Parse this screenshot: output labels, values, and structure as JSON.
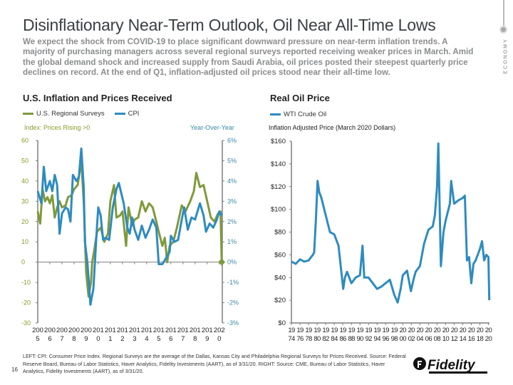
{
  "header": {
    "title": "Disinflationary Near-Term Outlook, Oil Near All-Time Lows",
    "paragraph": "We expect the shock from COVID-19 to place significant downward pressure on near-term inflation trends. A majority of purchasing managers across several regional surveys reported receiving weaker prices in March. Amid the global demand shock and increased supply from Saudi Arabia, oil prices posted their steepest quarterly price declines on record. At the end of Q1, inflation-adjusted oil prices stood near their all-time low.",
    "section": "ECONOMY"
  },
  "colors": {
    "green": "#7f9a3a",
    "blue": "#2e8bc0",
    "axis": "#7f7f7f"
  },
  "chart_data": [
    {
      "type": "line",
      "title": "U.S. Inflation and Prices Received",
      "ylabel": "Index: Prices Rising >0",
      "y2label": "Year-Over-Year",
      "ylim": [
        -30,
        60
      ],
      "yticks": [
        "60",
        "50",
        "40",
        "30",
        "20",
        "10",
        "0",
        "-10",
        "-20",
        "-30"
      ],
      "y2lim": [
        -3,
        6
      ],
      "y2ticks": [
        "6%",
        "5%",
        "4%",
        "3%",
        "2%",
        "1%",
        "0%",
        "-1%",
        "-2%",
        "-3%"
      ],
      "xlim": [
        2005,
        2020.25
      ],
      "xticks": [
        "2005",
        "2006",
        "2007",
        "2008",
        "2009",
        "2010",
        "2011",
        "2012",
        "2013",
        "2014",
        "2015",
        "2016",
        "2017",
        "2018",
        "2019",
        "2020"
      ],
      "series": [
        {
          "name": "U.S. Regional Surveys",
          "axis": "left",
          "color": "#7f9a3a",
          "x": [
            2005,
            2005.2,
            2005.4,
            2005.6,
            2005.8,
            2006,
            2006.2,
            2006.4,
            2006.6,
            2006.8,
            2007,
            2007.3,
            2007.5,
            2007.8,
            2008,
            2008.3,
            2008.6,
            2008.8,
            2009,
            2009.2,
            2009.4,
            2009.5,
            2009.7,
            2009.9,
            2010.2,
            2010.5,
            2010.8,
            2011,
            2011.3,
            2011.5,
            2011.8,
            2012,
            2012.3,
            2012.5,
            2012.8,
            2013,
            2013.3,
            2013.6,
            2013.9,
            2014.2,
            2014.5,
            2014.8,
            2015,
            2015.3,
            2015.5,
            2015.7,
            2015.9,
            2016.2,
            2016.5,
            2016.9,
            2017.2,
            2017.6,
            2017.9,
            2018.1,
            2018.4,
            2018.7,
            2019,
            2019.3,
            2019.6,
            2019.9,
            2020.1,
            2020.2
          ],
          "y": [
            25,
            19,
            36,
            30,
            32,
            29,
            33,
            22,
            27,
            30,
            27,
            28,
            32,
            33,
            36,
            38,
            50,
            30,
            -5,
            -17,
            -10,
            0,
            7,
            15,
            17,
            10,
            14,
            30,
            38,
            22,
            23,
            25,
            8,
            27,
            18,
            21,
            22,
            30,
            25,
            29,
            27,
            20,
            15,
            8,
            12,
            0,
            8,
            10,
            17,
            28,
            25,
            30,
            35,
            44,
            37,
            38,
            30,
            22,
            20,
            24,
            25,
            0
          ]
        },
        {
          "name": "CPI",
          "axis": "right",
          "color": "#2e8bc0",
          "x": [
            2005,
            2005.3,
            2005.5,
            2005.7,
            2006,
            2006.2,
            2006.4,
            2006.6,
            2006.8,
            2007,
            2007.3,
            2007.5,
            2007.7,
            2007.9,
            2008.2,
            2008.4,
            2008.6,
            2008.8,
            2008.9,
            2009.1,
            2009.2,
            2009.35,
            2009.6,
            2009.9,
            2010,
            2010.2,
            2010.4,
            2010.6,
            2010.9,
            2011.2,
            2011.5,
            2011.7,
            2011.9,
            2012.1,
            2012.4,
            2012.6,
            2012.8,
            2013,
            2013.3,
            2013.6,
            2013.9,
            2014.2,
            2014.5,
            2014.8,
            2015,
            2015.3,
            2015.6,
            2015.9,
            2016,
            2016.3,
            2016.6,
            2016.9,
            2017.1,
            2017.4,
            2017.7,
            2018,
            2018.4,
            2018.7,
            2018.9,
            2019.2,
            2019.5,
            2019.8,
            2020,
            2020.2
          ],
          "y": [
            3.5,
            2.9,
            4.7,
            3.5,
            4.0,
            3.5,
            4.3,
            3.8,
            1.4,
            2.4,
            2.7,
            2.6,
            2.0,
            4.3,
            4.0,
            4.2,
            5.6,
            3.7,
            1.0,
            0.0,
            -0.8,
            -2.1,
            -1.3,
            1.8,
            2.7,
            2.3,
            1.1,
            1.2,
            1.1,
            2.7,
            3.6,
            3.9,
            3.4,
            2.9,
            1.7,
            1.4,
            2.2,
            1.6,
            1.1,
            1.8,
            1.2,
            1.6,
            2.1,
            1.7,
            -0.1,
            -0.1,
            0.2,
            0.5,
            1.3,
            1.0,
            1.1,
            2.1,
            2.7,
            1.6,
            2.2,
            2.1,
            2.9,
            2.3,
            1.5,
            1.9,
            1.7,
            2.1,
            2.5,
            2.3
          ]
        }
      ]
    },
    {
      "type": "line",
      "title": "Real Oil Price",
      "ylabel": "Inflation Adjusted Price (March 2020 Dollars)",
      "ylim": [
        0,
        160
      ],
      "yticks": [
        "$160",
        "$140",
        "$120",
        "$100",
        "$80",
        "$60",
        "$40",
        "$20",
        "$0"
      ],
      "xlim": [
        1974,
        2020.25
      ],
      "xticks": [
        "1974",
        "1976",
        "1978",
        "1980",
        "1982",
        "1984",
        "1986",
        "1988",
        "1990",
        "1992",
        "1994",
        "1996",
        "1998",
        "2000",
        "2002",
        "2004",
        "2006",
        "2008",
        "2010",
        "2012",
        "2014",
        "2016",
        "2018",
        "2020"
      ],
      "series": [
        {
          "name": "WTI Crude Oil",
          "color": "#2e8bc0",
          "x": [
            1974,
            1975,
            1976,
            1977,
            1978,
            1979,
            1979.3,
            1979.7,
            1980.1,
            1980.5,
            1981,
            1982,
            1983,
            1984,
            1985,
            1986.1,
            1986.5,
            1987,
            1988,
            1989,
            1990,
            1990.6,
            1991,
            1992,
            1993,
            1994,
            1995,
            1996,
            1997,
            1998,
            1998.8,
            1999.5,
            2000,
            2001,
            2001.9,
            2002.5,
            2003,
            2004,
            2005,
            2006,
            2007,
            2007.5,
            2008,
            2008.3,
            2008.9,
            2009.5,
            2010,
            2011,
            2011.3,
            2012,
            2013,
            2014,
            2014.5,
            2015,
            2015.5,
            2016,
            2016.5,
            2017,
            2018,
            2018.5,
            2019,
            2019.5,
            2020,
            2020.2
          ],
          "y": [
            54,
            52,
            56,
            54,
            55,
            60,
            62,
            90,
            125,
            115,
            110,
            95,
            80,
            78,
            68,
            30,
            40,
            45,
            35,
            40,
            42,
            68,
            40,
            40,
            35,
            30,
            32,
            35,
            38,
            25,
            18,
            30,
            42,
            46,
            28,
            38,
            45,
            50,
            70,
            82,
            85,
            95,
            120,
            158,
            50,
            80,
            90,
            105,
            125,
            105,
            108,
            110,
            112,
            55,
            58,
            35,
            52,
            55,
            65,
            72,
            55,
            60,
            58,
            20
          ]
        }
      ]
    }
  ],
  "legend": {
    "left": [
      "U.S. Regional Surveys",
      "CPI"
    ],
    "right": [
      "WTI Crude Oil"
    ]
  },
  "footer": {
    "text": "LEFT: CPI: Consumer Price Index. Regional Surveys are the average of the Dallas, Kansas City and Philadelphia Regional Surveys for Prices Received. Source: Federal Reserve Board, Bureau of Labor Statistics, Haver Analytics, Fidelity Investments (AART), as of 3/31/20. RIGHT: Source: CME, Bureau of Labor Statistics, Haver Analytics, Fidelity Investments (AART), as of 3/31/20.",
    "page": "16",
    "logo": "Fidelity INVESTMENTS"
  }
}
